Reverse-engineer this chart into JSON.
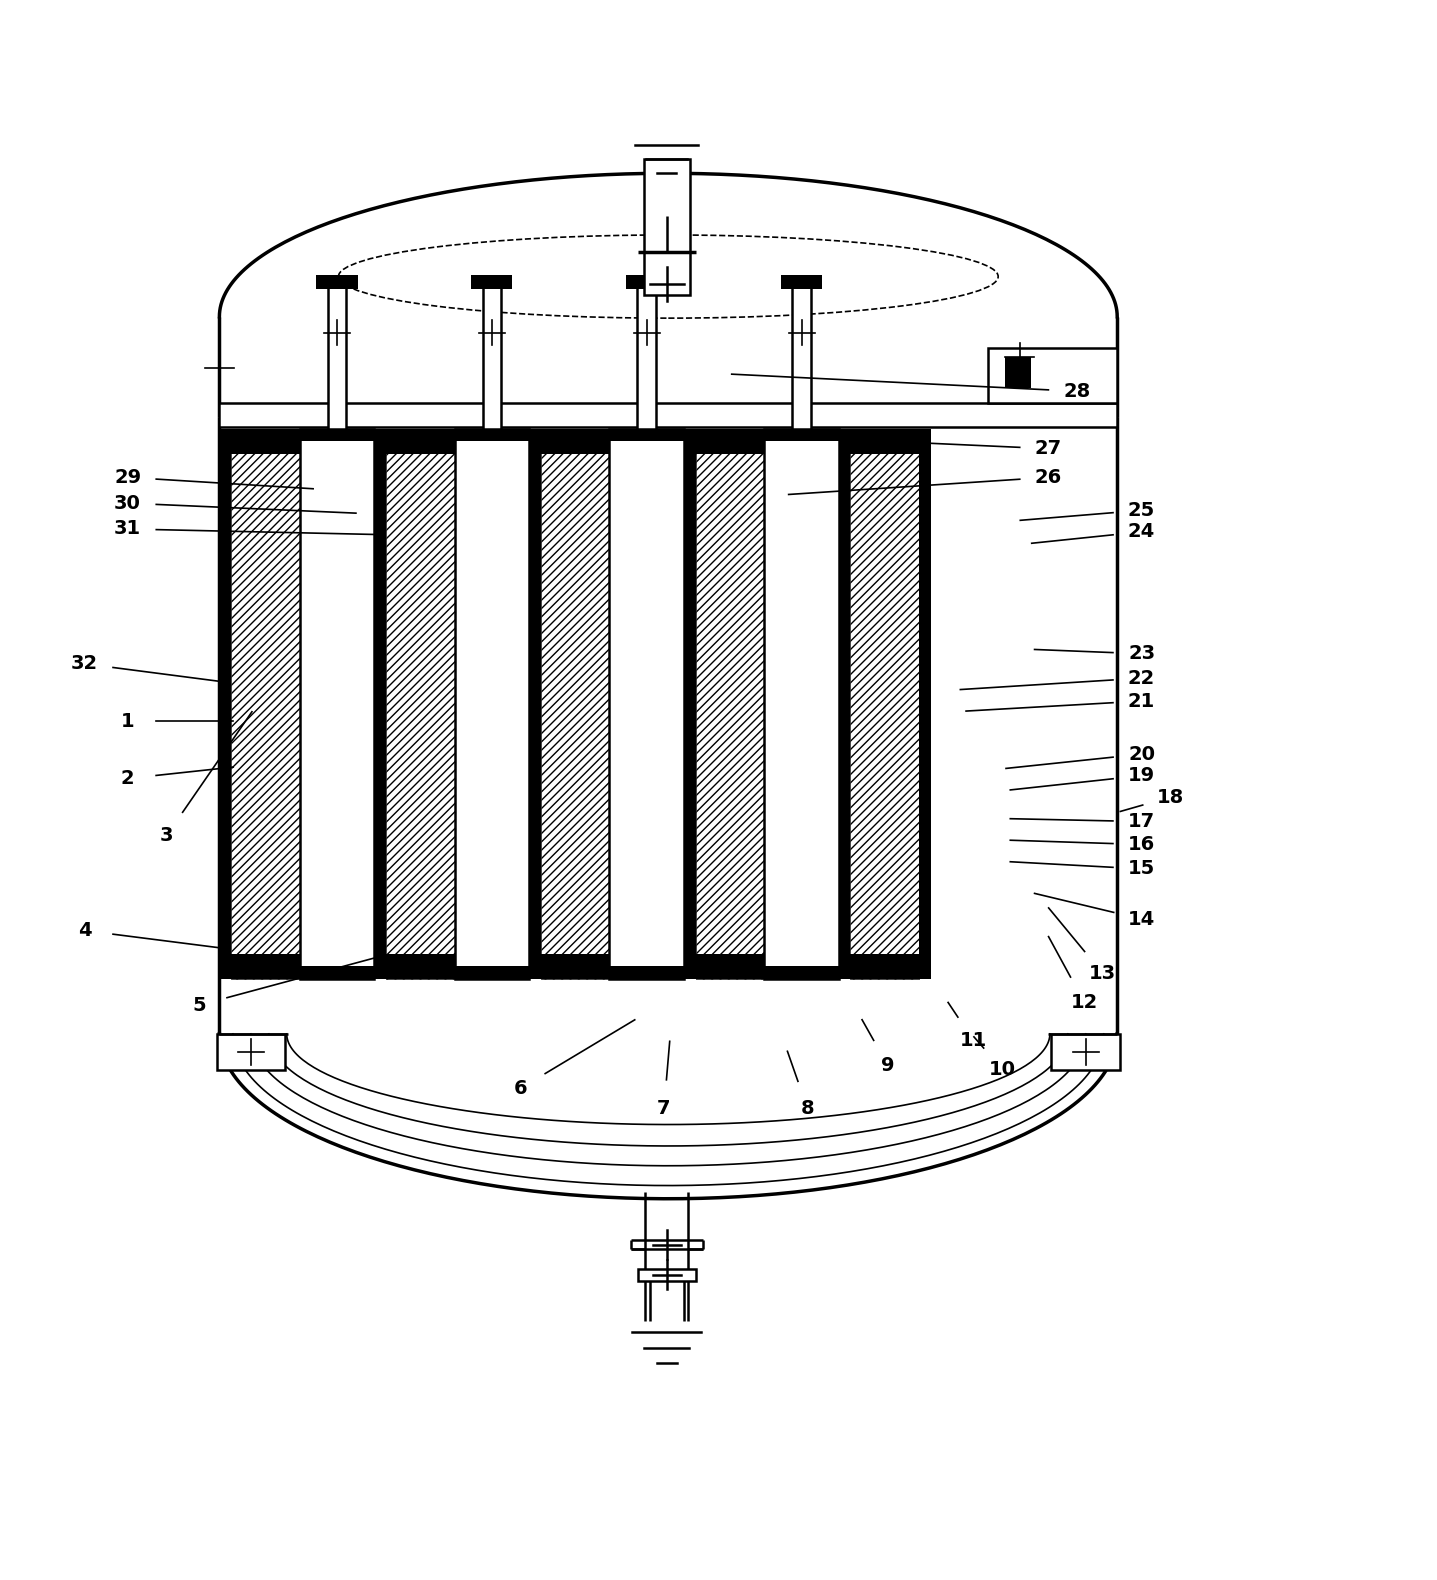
{
  "bg_color": "#ffffff",
  "lc": "#000000",
  "figsize": [
    14.37,
    15.8
  ],
  "dpi": 100,
  "lw_thick": 2.5,
  "lw_main": 1.8,
  "lw_thin": 1.2,
  "label_fontsize": 14,
  "labels": {
    "1": [
      0.088,
      0.548,
      0.162,
      0.548
    ],
    "2": [
      0.088,
      0.508,
      0.162,
      0.516
    ],
    "3": [
      0.115,
      0.468,
      0.175,
      0.555
    ],
    "4": [
      0.058,
      0.402,
      0.152,
      0.39
    ],
    "5": [
      0.138,
      0.35,
      0.268,
      0.385
    ],
    "6": [
      0.362,
      0.292,
      0.442,
      0.34
    ],
    "7": [
      0.462,
      0.278,
      0.466,
      0.325
    ],
    "8": [
      0.562,
      0.278,
      0.548,
      0.318
    ],
    "9": [
      0.618,
      0.308,
      0.6,
      0.34
    ],
    "10": [
      0.698,
      0.305,
      0.678,
      0.328
    ],
    "11": [
      0.678,
      0.325,
      0.66,
      0.352
    ],
    "12": [
      0.755,
      0.352,
      0.73,
      0.398
    ],
    "13": [
      0.768,
      0.372,
      0.73,
      0.418
    ],
    "14": [
      0.795,
      0.41,
      0.72,
      0.428
    ],
    "15": [
      0.795,
      0.445,
      0.703,
      0.45
    ],
    "16": [
      0.795,
      0.462,
      0.703,
      0.465
    ],
    "17": [
      0.795,
      0.478,
      0.703,
      0.48
    ],
    "18": [
      0.815,
      0.495,
      0.78,
      0.485
    ],
    "19": [
      0.795,
      0.51,
      0.703,
      0.5
    ],
    "20": [
      0.795,
      0.525,
      0.7,
      0.515
    ],
    "21": [
      0.795,
      0.562,
      0.672,
      0.555
    ],
    "22": [
      0.795,
      0.578,
      0.668,
      0.57
    ],
    "23": [
      0.795,
      0.595,
      0.72,
      0.598
    ],
    "24": [
      0.795,
      0.68,
      0.718,
      0.672
    ],
    "25": [
      0.795,
      0.695,
      0.71,
      0.688
    ],
    "26": [
      0.73,
      0.718,
      0.548,
      0.706
    ],
    "27": [
      0.73,
      0.738,
      0.51,
      0.748
    ],
    "28": [
      0.75,
      0.778,
      0.508,
      0.79
    ],
    "29": [
      0.088,
      0.718,
      0.218,
      0.71
    ],
    "30": [
      0.088,
      0.7,
      0.248,
      0.693
    ],
    "31": [
      0.088,
      0.682,
      0.268,
      0.678
    ],
    "32": [
      0.058,
      0.588,
      0.158,
      0.575
    ]
  }
}
